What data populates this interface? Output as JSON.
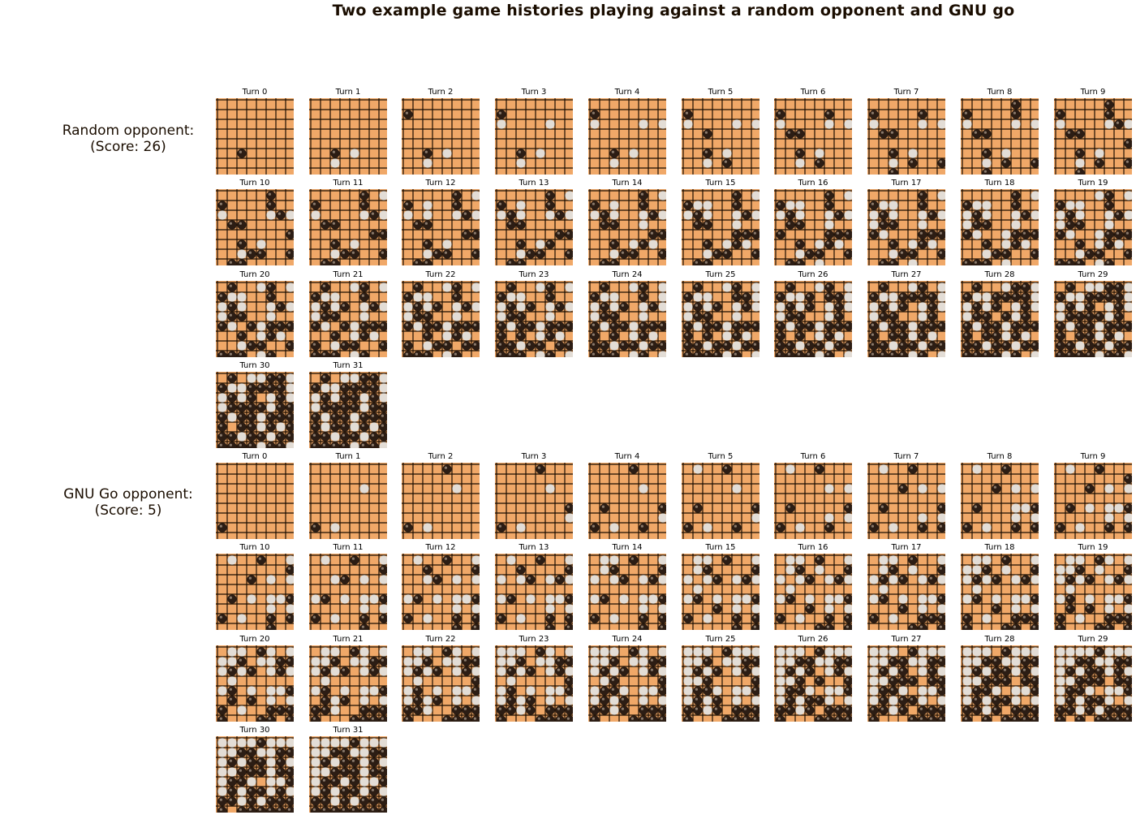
{
  "title": "Two example game histories playing against a random opponent and GNU go",
  "sections": [
    {
      "label_line1": "Random opponent:",
      "label_line2": "(Score: 26)",
      "turns": [
        "Turn 0",
        "Turn 1",
        "Turn 2",
        "Turn 3",
        "Turn 4",
        "Turn 5",
        "Turn 6",
        "Turn 7",
        "Turn 8",
        "Turn 9",
        "Turn 10",
        "Turn 11",
        "Turn 12",
        "Turn 13",
        "Turn 14",
        "Turn 15",
        "Turn 16",
        "Turn 17",
        "Turn 18",
        "Turn 19",
        "Turn 20",
        "Turn 21",
        "Turn 22",
        "Turn 23",
        "Turn 24",
        "Turn 25",
        "Turn 26",
        "Turn 27",
        "Turn 28",
        "Turn 29",
        "Turn 30",
        "Turn 31"
      ],
      "final_board": [
        ".B.WWBBW",
        "BWWBBBBW",
        "WBWBBWBW",
        "WBBBBWBB",
        "BWBBWBBB",
        "BWBBWBWB",
        "BBWBBWBB",
        "BBBBWBBW"
      ]
    },
    {
      "label_line1": "GNU Go opponent:",
      "label_line2": "(Score: 5)",
      "turns": [
        "Turn 0",
        "Turn 1",
        "Turn 2",
        "Turn 3",
        "Turn 4",
        "Turn 5",
        "Turn 6",
        "Turn 7",
        "Turn 8",
        "Turn 9",
        "Turn 10",
        "Turn 11",
        "Turn 12",
        "Turn 13",
        "Turn 14",
        "Turn 15",
        "Turn 16",
        "Turn 17",
        "Turn 18",
        "Turn 19",
        "Turn 20",
        "Turn 21",
        "Turn 22",
        "Turn 23",
        "Turn 24",
        "Turn 25",
        "Turn 26",
        "Turn 27",
        "Turn 28",
        "Turn 29",
        "Turn 30",
        "Turn 31"
      ],
      "final_board": [
        "WWWWBWWW",
        "WWBBWWBB",
        "WBWBBWBW",
        "WWBBBWBB",
        "WBBWBWWB",
        "WBWBBWBW",
        "BBWBWBBB",
        "BBBBBBBB"
      ]
    }
  ],
  "colors": {
    "board": "#f0a868",
    "grid": "#1a0d00",
    "black_stone": "#2c1d14",
    "white_stone": "#e3ddd6"
  }
}
